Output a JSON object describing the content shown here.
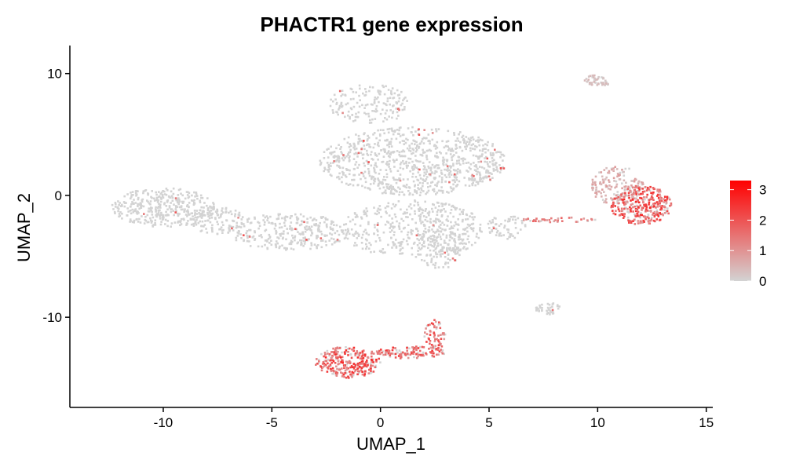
{
  "chart_data": {
    "type": "scatter",
    "title": "PHACTR1 gene expression",
    "xlabel": "UMAP_1",
    "ylabel": "UMAP_2",
    "xlim": [
      -14.3,
      15.3
    ],
    "ylim": [
      -17.4,
      12.3
    ],
    "x_ticks": [
      -10,
      -5,
      0,
      5,
      10,
      15
    ],
    "y_ticks": [
      -10,
      0,
      10
    ],
    "x_tick_labels": [
      "-10",
      "-5",
      "0",
      "5",
      "10",
      "15"
    ],
    "y_tick_labels": [
      "-10",
      "0",
      "10"
    ],
    "grid": false,
    "legend": {
      "placement": "right",
      "min": 0,
      "max": 3.3,
      "ticks": [
        0,
        1,
        2,
        3
      ],
      "tick_labels": [
        "0",
        "1",
        "2",
        "3"
      ],
      "low_color": "#d3d3d3",
      "high_color": "#ff0000"
    },
    "clusters": [
      {
        "name": "main-body",
        "center": [
          1.5,
          2.8
        ],
        "radius": [
          4.3,
          2.8
        ],
        "level": 0.0,
        "points": 900
      },
      {
        "name": "main-top",
        "center": [
          -0.5,
          7.5
        ],
        "radius": [
          1.9,
          1.6
        ],
        "level": 0.0,
        "points": 160
      },
      {
        "name": "main-lower",
        "center": [
          1.5,
          -2.8
        ],
        "radius": [
          3.3,
          2.4
        ],
        "level": 0.0,
        "points": 420
      },
      {
        "name": "lower-right-lobe",
        "center": [
          2.7,
          -4.0
        ],
        "radius": [
          1.1,
          2.1
        ],
        "level": 0.0,
        "points": 140
      },
      {
        "name": "bridge",
        "center": [
          -4.2,
          -3.0
        ],
        "radius": [
          2.8,
          1.5
        ],
        "level": 0.0,
        "points": 300
      },
      {
        "name": "left-cluster",
        "center": [
          -10.0,
          -1.0
        ],
        "radius": [
          2.4,
          1.6
        ],
        "level": 0.0,
        "points": 360
      },
      {
        "name": "left-arm",
        "center": [
          -7.6,
          -2.0
        ],
        "radius": [
          1.3,
          1.2
        ],
        "level": 0.0,
        "points": 120
      },
      {
        "name": "mid-right-small",
        "center": [
          5.8,
          -2.6
        ],
        "radius": [
          0.9,
          1.0
        ],
        "level": 0.0,
        "points": 60
      },
      {
        "name": "streak",
        "center": [
          8.2,
          -2.0
        ],
        "radius": [
          1.7,
          0.2
        ],
        "level": 1.2,
        "points": 40
      },
      {
        "name": "right-upper",
        "center": [
          10.9,
          0.8
        ],
        "radius": [
          1.2,
          1.6
        ],
        "level": 0.6,
        "points": 160
      },
      {
        "name": "right-cluster",
        "center": [
          12.0,
          -0.8
        ],
        "radius": [
          1.4,
          1.6
        ],
        "level": 1.8,
        "points": 320
      },
      {
        "name": "top-right-small",
        "center": [
          10.0,
          9.4
        ],
        "radius": [
          0.6,
          0.5
        ],
        "level": 0.3,
        "points": 50
      },
      {
        "name": "small-lower",
        "center": [
          7.7,
          -9.3
        ],
        "radius": [
          0.6,
          0.5
        ],
        "level": 0.0,
        "points": 40
      },
      {
        "name": "bottom-left",
        "center": [
          -1.5,
          -13.7
        ],
        "radius": [
          1.5,
          1.3
        ],
        "level": 1.8,
        "points": 280
      },
      {
        "name": "bottom-arm",
        "center": [
          1.4,
          -12.9
        ],
        "radius": [
          1.6,
          0.5
        ],
        "level": 1.7,
        "points": 120
      },
      {
        "name": "bottom-tip",
        "center": [
          2.5,
          -11.5
        ],
        "radius": [
          0.5,
          1.3
        ],
        "level": 1.6,
        "points": 60
      }
    ]
  }
}
